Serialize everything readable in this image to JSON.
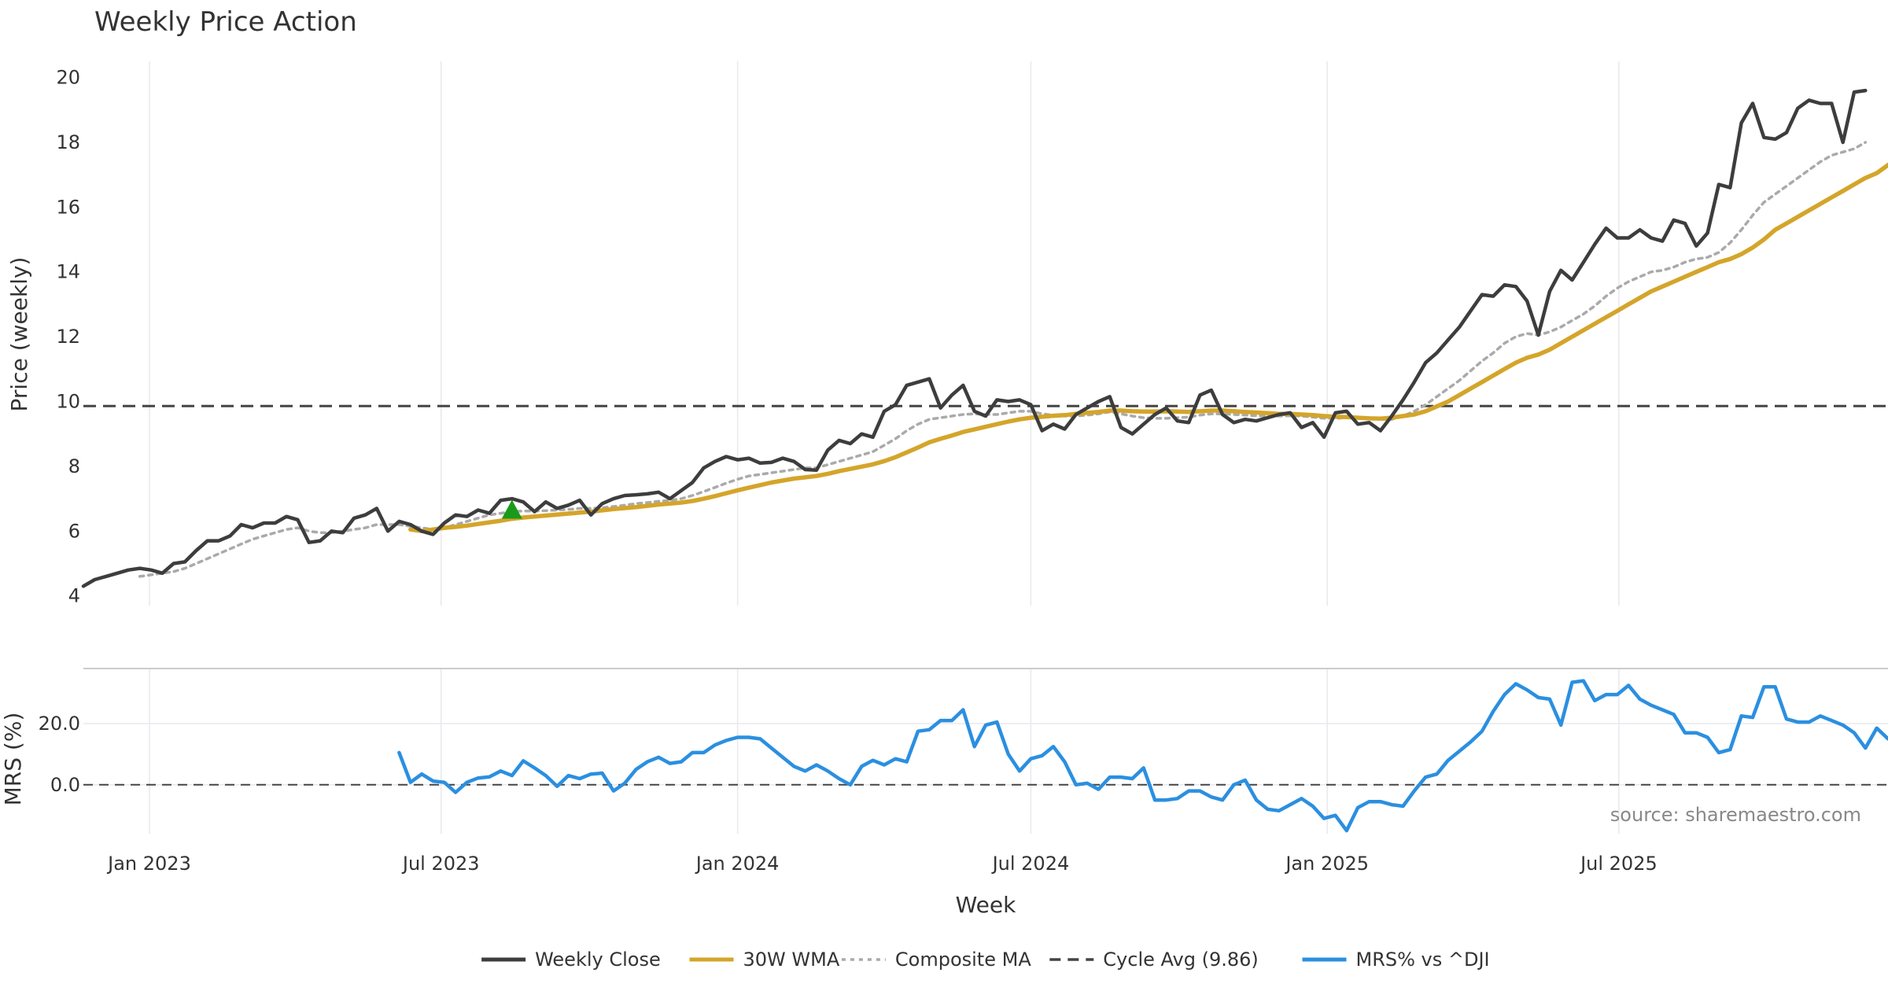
{
  "title": "Weekly Price Action",
  "source": "source: sharemaestro.com",
  "colors": {
    "weekly_close": "#3d3d3d",
    "wma": "#d4a52a",
    "composite": "#aaaaaa",
    "cycle": "#444444",
    "mrs": "#2b8fe0",
    "signal": "#1a9a1a",
    "grid": "#e8e8ee"
  },
  "chart_data": [
    {
      "type": "line",
      "title": "Weekly Price Action",
      "xlabel": "",
      "ylabel": "Price (weekly)",
      "ylim": [
        3.7,
        20.5
      ],
      "yticks": [
        "4",
        "6",
        "8",
        "10",
        "12",
        "14",
        "16",
        "18",
        "20"
      ],
      "x_start": "2022-11-21",
      "x_end": "2025-12-15",
      "grid": true,
      "series": [
        {
          "name": "Weekly Close",
          "values": [
            4.3,
            4.5,
            4.6,
            4.7,
            4.8,
            4.85,
            4.8,
            4.7,
            5.0,
            5.05,
            5.4,
            5.7,
            5.7,
            5.85,
            6.2,
            6.1,
            6.25,
            6.25,
            6.45,
            6.35,
            5.65,
            5.7,
            6.0,
            5.95,
            6.4,
            6.5,
            6.7,
            6.0,
            6.3,
            6.2,
            6.0,
            5.9,
            6.25,
            6.5,
            6.45,
            6.65,
            6.55,
            6.95,
            7.0,
            6.9,
            6.6,
            6.9,
            6.7,
            6.8,
            6.95,
            6.5,
            6.85,
            7.0,
            7.1,
            7.12,
            7.15,
            7.2,
            7.0,
            7.25,
            7.5,
            7.95,
            8.15,
            8.3,
            8.2,
            8.25,
            8.1,
            8.12,
            8.25,
            8.15,
            7.9,
            7.88,
            8.5,
            8.8,
            8.7,
            9.0,
            8.9,
            9.7,
            9.9,
            10.5,
            10.6,
            10.7,
            9.8,
            10.2,
            10.5,
            9.7,
            9.55,
            10.05,
            10.0,
            10.05,
            9.9,
            9.1,
            9.3,
            9.15,
            9.6,
            9.8,
            10.0,
            10.15,
            9.2,
            9.0,
            9.3,
            9.6,
            9.8,
            9.4,
            9.35,
            10.2,
            10.35,
            9.6,
            9.35,
            9.45,
            9.4,
            9.5,
            9.6,
            9.65,
            9.2,
            9.35,
            8.9,
            9.65,
            9.7,
            9.3,
            9.35,
            9.1,
            9.55,
            10.05,
            10.6,
            11.2,
            11.5,
            11.9,
            12.3,
            12.8,
            13.3,
            13.25,
            13.6,
            13.55,
            13.1,
            12.05,
            13.4,
            14.05,
            13.75,
            14.3,
            14.85,
            15.35,
            15.05,
            15.05,
            15.3,
            15.05,
            14.95,
            15.6,
            15.5,
            14.8,
            15.2,
            16.7,
            16.6,
            18.6,
            19.2,
            18.15,
            18.1,
            18.3,
            19.05,
            19.3,
            19.2,
            19.2,
            18.0,
            19.55,
            19.6
          ]
        },
        {
          "name": "30W WMA",
          "values": [
            null,
            null,
            null,
            null,
            null,
            null,
            null,
            null,
            null,
            null,
            null,
            null,
            null,
            null,
            null,
            null,
            null,
            null,
            null,
            null,
            null,
            null,
            null,
            null,
            null,
            null,
            null,
            null,
            null,
            6.05,
            6.0,
            6.05,
            6.1,
            6.13,
            6.17,
            6.22,
            6.27,
            6.32,
            6.38,
            6.42,
            6.45,
            6.48,
            6.51,
            6.54,
            6.57,
            6.6,
            6.64,
            6.68,
            6.71,
            6.74,
            6.78,
            6.82,
            6.85,
            6.88,
            6.93,
            7.0,
            7.08,
            7.17,
            7.26,
            7.34,
            7.42,
            7.5,
            7.56,
            7.62,
            7.66,
            7.7,
            7.77,
            7.85,
            7.92,
            7.99,
            8.06,
            8.16,
            8.28,
            8.43,
            8.58,
            8.74,
            8.85,
            8.95,
            9.06,
            9.14,
            9.22,
            9.3,
            9.38,
            9.45,
            9.5,
            9.53,
            9.56,
            9.58,
            9.62,
            9.65,
            9.68,
            9.72,
            9.72,
            9.7,
            9.69,
            9.69,
            9.7,
            9.69,
            9.68,
            9.7,
            9.72,
            9.72,
            9.7,
            9.68,
            9.66,
            9.64,
            9.62,
            9.62,
            9.6,
            9.58,
            9.55,
            9.53,
            9.52,
            9.5,
            9.48,
            9.47,
            9.5,
            9.55,
            9.6,
            9.7,
            9.85,
            10.0,
            10.2,
            10.4,
            10.6,
            10.8,
            11.0,
            11.2,
            11.35,
            11.45,
            11.6,
            11.8,
            12.0,
            12.2,
            12.4,
            12.6,
            12.8,
            13.0,
            13.2,
            13.4,
            13.55,
            13.7,
            13.85,
            14.0,
            14.15,
            14.3,
            14.4,
            14.55,
            14.75,
            15.0,
            15.3,
            15.5,
            15.7,
            15.9,
            16.1,
            16.3,
            16.5,
            16.7,
            16.9,
            17.05,
            17.3,
            17.5
          ]
        },
        {
          "name": "Composite MA",
          "values": [
            null,
            null,
            null,
            null,
            null,
            4.6,
            4.65,
            4.7,
            4.75,
            4.85,
            5.0,
            5.15,
            5.3,
            5.45,
            5.6,
            5.75,
            5.85,
            5.95,
            6.05,
            6.1,
            6.0,
            5.95,
            5.95,
            6.0,
            6.05,
            6.1,
            6.2,
            6.2,
            6.2,
            6.15,
            6.1,
            6.05,
            6.1,
            6.2,
            6.3,
            6.4,
            6.5,
            6.55,
            6.6,
            6.62,
            6.62,
            6.63,
            6.65,
            6.67,
            6.7,
            6.7,
            6.72,
            6.76,
            6.8,
            6.85,
            6.88,
            6.92,
            6.95,
            7.0,
            7.1,
            7.22,
            7.35,
            7.48,
            7.6,
            7.7,
            7.75,
            7.8,
            7.85,
            7.9,
            7.95,
            7.95,
            8.05,
            8.15,
            8.25,
            8.35,
            8.45,
            8.65,
            8.85,
            9.1,
            9.3,
            9.45,
            9.5,
            9.55,
            9.6,
            9.62,
            9.6,
            9.6,
            9.65,
            9.7,
            9.7,
            9.62,
            9.58,
            9.55,
            9.55,
            9.58,
            9.62,
            9.68,
            9.62,
            9.55,
            9.5,
            9.48,
            9.48,
            9.5,
            9.52,
            9.58,
            9.62,
            9.62,
            9.6,
            9.58,
            9.56,
            9.55,
            9.55,
            9.56,
            9.55,
            9.52,
            9.48,
            9.48,
            9.5,
            9.5,
            9.48,
            9.45,
            9.45,
            9.55,
            9.7,
            9.9,
            10.15,
            10.4,
            10.65,
            10.95,
            11.25,
            11.5,
            11.8,
            12.0,
            12.1,
            12.05,
            12.15,
            12.3,
            12.5,
            12.7,
            12.95,
            13.25,
            13.5,
            13.7,
            13.85,
            14.0,
            14.05,
            14.15,
            14.3,
            14.4,
            14.45,
            14.6,
            14.9,
            15.3,
            15.75,
            16.15,
            16.4,
            16.65,
            16.9,
            17.15,
            17.4,
            17.6,
            17.7,
            17.8,
            18.0
          ]
        }
      ],
      "reference_lines": [
        {
          "name": "Cycle Avg (9.86)",
          "value": 9.86
        }
      ],
      "annotations": [
        {
          "type": "triangle-up",
          "x_index": 38,
          "value": 6.65
        }
      ]
    },
    {
      "type": "line",
      "xlabel": "Week",
      "ylabel": "MRS (%)",
      "ylim": [
        -16,
        38
      ],
      "yticks": [
        "20.0",
        "0.0"
      ],
      "xticks": [
        "Jan 2023",
        "Jul 2023",
        "Jan 2024",
        "Jul 2024",
        "Jan 2025",
        "Jul 2025"
      ],
      "grid": true,
      "series": [
        {
          "name": "MRS% vs ^DJI",
          "values": [
            null,
            null,
            null,
            null,
            null,
            null,
            null,
            null,
            null,
            null,
            null,
            null,
            null,
            null,
            null,
            null,
            null,
            null,
            null,
            null,
            null,
            null,
            null,
            null,
            null,
            null,
            null,
            null,
            10.5,
            0.8,
            3.5,
            1.2,
            0.8,
            -2.5,
            0.8,
            2.2,
            2.6,
            4.5,
            3.0,
            7.8,
            5.5,
            3.0,
            -0.5,
            3.0,
            2.0,
            3.5,
            3.8,
            -2.0,
            0.5,
            5.0,
            7.5,
            9.0,
            7.0,
            7.5,
            10.5,
            10.5,
            13.0,
            14.5,
            15.5,
            15.5,
            15.0,
            12.0,
            9.0,
            6.0,
            4.5,
            6.5,
            4.5,
            2.0,
            0.0,
            6.0,
            8.0,
            6.5,
            8.5,
            7.5,
            17.5,
            18.0,
            21.0,
            21.0,
            24.5,
            12.5,
            19.5,
            20.5,
            10.0,
            4.5,
            8.5,
            9.5,
            12.5,
            7.5,
            0.0,
            0.5,
            -1.5,
            2.5,
            2.5,
            2.0,
            5.5,
            -5.0,
            -5.0,
            -4.5,
            -2.0,
            -2.0,
            -4.0,
            -5.0,
            0.0,
            1.5,
            -5.0,
            -8.0,
            -8.5,
            -6.5,
            -4.5,
            -7.0,
            -11.0,
            -10.0,
            -15.0,
            -7.5,
            -5.5,
            -5.5,
            -6.5,
            -7.0,
            -2.0,
            2.5,
            3.5,
            8.0,
            11.0,
            14.0,
            17.5,
            24.0,
            29.5,
            33.0,
            31.0,
            28.5,
            28.0,
            19.5,
            33.5,
            34.0,
            27.5,
            29.5,
            29.5,
            32.5,
            28.0,
            26.0,
            24.5,
            23.0,
            17.0,
            17.0,
            15.5,
            10.5,
            11.5,
            22.5,
            22.0,
            32.0,
            32.0,
            21.5,
            20.5,
            20.5,
            22.5,
            21.0,
            19.5,
            17.0,
            12.0,
            18.5,
            15.0
          ]
        }
      ],
      "reference_lines": [
        {
          "value": 0
        }
      ]
    }
  ],
  "legend": {
    "placement": "bottom-center",
    "items": [
      {
        "label": "Weekly Close",
        "style": "solid",
        "color_key": "weekly_close"
      },
      {
        "label": "30W WMA",
        "style": "solid",
        "color_key": "wma"
      },
      {
        "label": "Composite MA",
        "style": "dotted",
        "color_key": "composite"
      },
      {
        "label": "Cycle Avg (9.86)",
        "style": "dashed",
        "color_key": "cycle"
      },
      {
        "label": "MRS% vs ^DJI",
        "style": "solid",
        "color_key": "mrs"
      }
    ]
  }
}
